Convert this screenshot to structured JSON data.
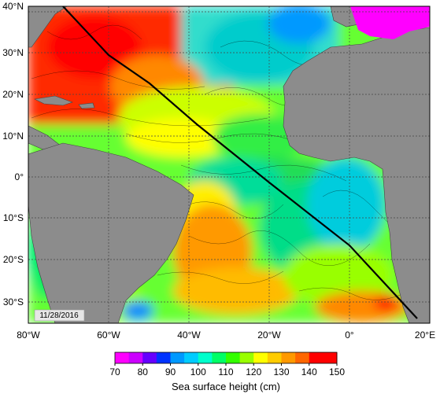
{
  "map": {
    "lat_labels": [
      "40°N",
      "30°N",
      "20°N",
      "10°N",
      "0°",
      "10°S",
      "20°S",
      "30°S"
    ],
    "lon_labels": [
      "80°W",
      "60°W",
      "40°W",
      "20°W",
      "0°",
      "20°E"
    ],
    "date_label": "11/28/2016",
    "colorbar": {
      "title": "Sea surface height (cm)",
      "ticks": [
        "70",
        "80",
        "90",
        "100",
        "110",
        "120",
        "130",
        "140",
        "150"
      ],
      "colors": [
        "#ff00ff",
        "#cc00ff",
        "#6600ff",
        "#0033ff",
        "#0099ff",
        "#00ccff",
        "#00ffcc",
        "#00ff66",
        "#33ff00",
        "#99ff00",
        "#ffff00",
        "#ffcc00",
        "#ff9900",
        "#ff6600",
        "#ff0000",
        "#ff0000"
      ]
    },
    "land_color": "#8c8c8c",
    "track_color": "#000000"
  }
}
